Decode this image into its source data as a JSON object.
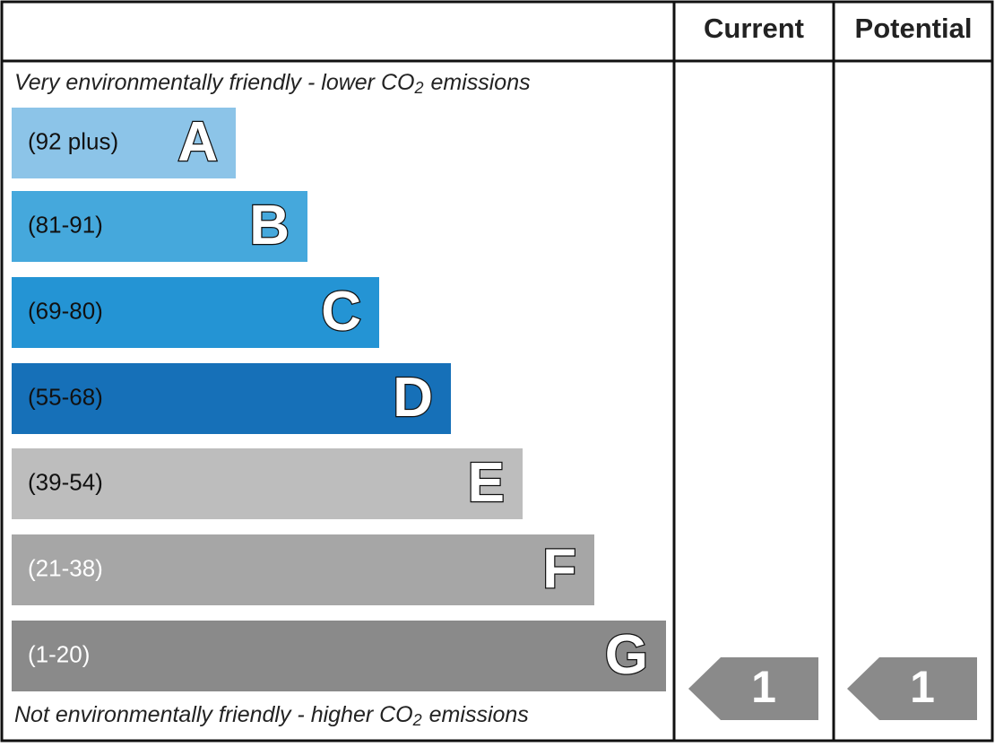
{
  "header": {
    "columns": [
      "Current",
      "Potential"
    ]
  },
  "top_note": {
    "before": "Very environmentally friendly - lower CO",
    "sub": "2",
    "after": "emissions"
  },
  "bottom_note": {
    "before": "Not environmentally friendly - higher CO",
    "sub": "2",
    "after": "emissions"
  },
  "bands": [
    {
      "range": "(92 plus)",
      "letter": "A",
      "color": "#8cc4e8",
      "text_color": "#111111"
    },
    {
      "range": "(81-91)",
      "letter": "B",
      "color": "#45a8dc",
      "text_color": "#111111"
    },
    {
      "range": "(69-80)",
      "letter": "C",
      "color": "#2494d4",
      "text_color": "#111111"
    },
    {
      "range": "(55-68)",
      "letter": "D",
      "color": "#1670b8",
      "text_color": "#111111"
    },
    {
      "range": "(39-54)",
      "letter": "E",
      "color": "#bdbdbd",
      "text_color": "#111111"
    },
    {
      "range": "(21-38)",
      "letter": "F",
      "color": "#a6a6a6",
      "text_color": "#ffffff"
    },
    {
      "range": "(1-20)",
      "letter": "G",
      "color": "#8a8a8a",
      "text_color": "#ffffff"
    }
  ],
  "ratings": {
    "current": 1,
    "potential": 1,
    "color": "#8a8a8a"
  }
}
